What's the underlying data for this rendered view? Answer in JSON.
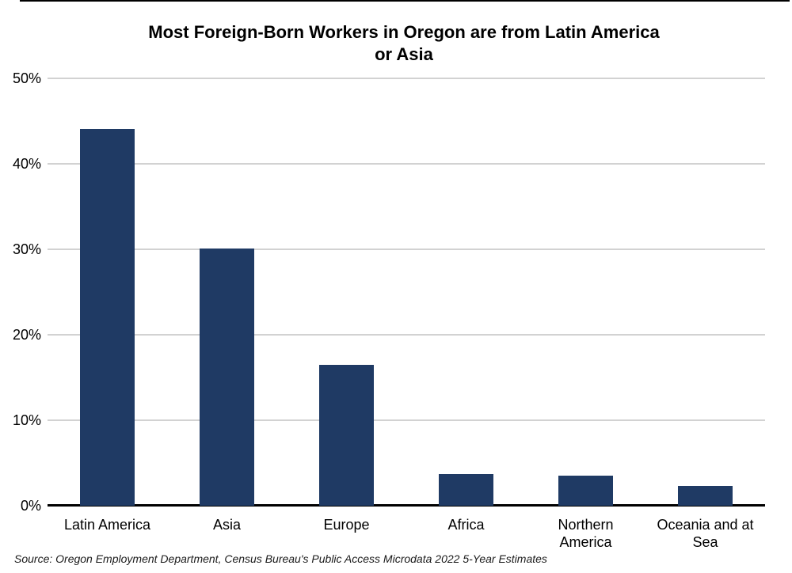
{
  "page": {
    "title_line1": "Most Foreign-Born Workers in Oregon are from Latin America",
    "title_line2": "or Asia",
    "source": "Source: Oregon Employment Department, Census Bureau's Public Access Microdata 2022 5-Year Estimates"
  },
  "colors": {
    "bar": "#1F3A64",
    "gridline": "#D2D2D2",
    "axis": "#000000",
    "text": "#000000"
  },
  "chart_data": {
    "type": "bar",
    "title": "Most Foreign-Born Workers in Oregon are from Latin America or Asia",
    "categories": [
      "Latin America",
      "Asia",
      "Europe",
      "Africa",
      "Northern\nAmerica",
      "Oceania and at\nSea"
    ],
    "values": [
      44.1,
      30.1,
      16.5,
      3.7,
      3.5,
      2.3
    ],
    "unit": "%",
    "xlabel": "",
    "ylabel": "",
    "ylim": [
      0,
      50
    ],
    "ytick_values": [
      50,
      40,
      30,
      20,
      10,
      0
    ],
    "yticks": [
      "50%",
      "40%",
      "30%",
      "20%",
      "10%",
      "0%"
    ],
    "grid": true,
    "legend": false,
    "source": "Source: Oregon Employment Department, Census Bureau's Public Access Microdata 2022 5-Year Estimates"
  }
}
